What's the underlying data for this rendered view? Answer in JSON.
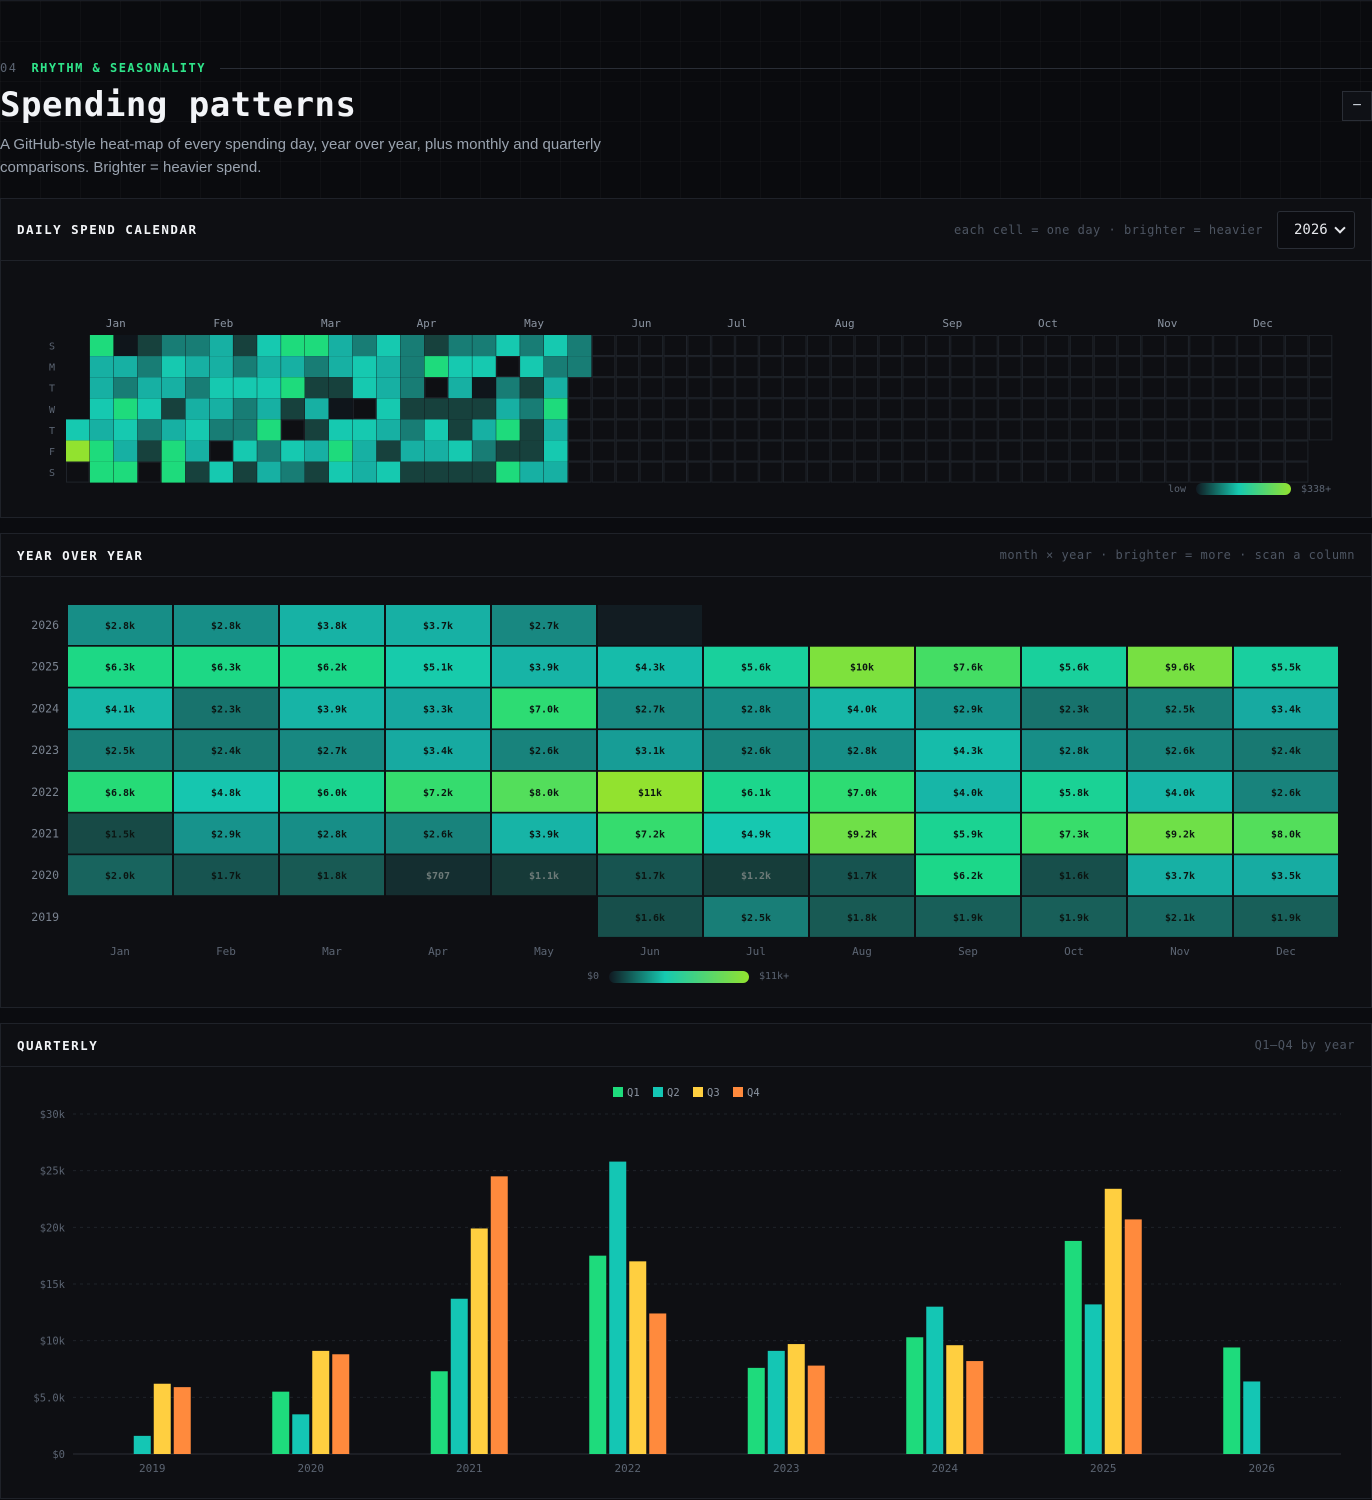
{
  "section": {
    "number": "04",
    "eyebrow": "RHYTHM & SEASONALITY",
    "title": "Spending patterns",
    "description": "A GitHub-style heat-map of every spending day, year over year, plus monthly and quarterly comparisons. Brighter = heavier spend.",
    "collapse_label": "−"
  },
  "daily": {
    "title": "DAILY SPEND CALENDAR",
    "hint": "each cell = one day · brighter = heavier",
    "year": "2026",
    "legend_low": "low",
    "legend_high": "$338+",
    "months": [
      "Jan",
      "Feb",
      "Mar",
      "Apr",
      "May",
      "Jun",
      "Jul",
      "Aug",
      "Sep",
      "Oct",
      "Nov",
      "Dec"
    ],
    "month_weeks": [
      2,
      6.5,
      11,
      15,
      19.5,
      24,
      28,
      32.5,
      37,
      41,
      46,
      50
    ],
    "weekdays": [
      "S",
      "M",
      "T",
      "W",
      "T",
      "F",
      "S"
    ],
    "weeks": 53,
    "grid": [
      [
        -1,
        4,
        0,
        3,
        4,
        0,
        3,
        3,
        4,
        0,
        2,
        1,
        1,
        2,
        2,
        0,
        1,
        1,
        0,
        2,
        2
      ],
      [
        -1,
        5,
        4,
        4,
        3,
        4,
        5,
        3,
        1,
        4,
        4,
        3,
        4,
        3,
        4,
        2,
        5,
        0,
        3,
        5,
        0
      ],
      [
        -1,
        5,
        0,
        1,
        2,
        3,
        2,
        1,
        2,
        4,
        3,
        5,
        1,
        3,
        4,
        3,
        4,
        3,
        3,
        3,
        5
      ],
      [
        -1,
        5,
        2,
        1,
        1,
        5,
        2,
        1,
        1,
        3,
        3,
        3,
        4,
        1,
        2,
        2,
        1,
        5,
        1,
        3,
        3
      ],
      [
        -1,
        5,
        2,
        1,
        2,
        3,
        4,
        4,
        4,
        2,
        3,
        2,
        4,
        1,
        4,
        4,
        3,
        5,
        1,
        5,
        3
      ],
      [
        -1,
        5,
        1,
        3,
        2,
        2,
        3,
        4,
        3,
        4,
        4,
        2,
        3,
        0,
        3,
        3,
        4,
        4,
        2,
        3,
        3
      ],
      [
        -1,
        5,
        3,
        4,
        0,
        2,
        3,
        3,
        4,
        3,
        2,
        5,
        4,
        1,
        1,
        3,
        2,
        5,
        2,
        4,
        3
      ],
      [
        -1,
        4,
        1,
        1,
        1,
        3,
        2,
        1,
        3,
        3,
        2,
        0,
        4,
        4,
        0,
        2,
        2,
        5,
        1,
        2,
        3
      ],
      [
        -1,
        5,
        2,
        3,
        4,
        3,
        1,
        4,
        4,
        3,
        3,
        3,
        4,
        1,
        4,
        4,
        2,
        3,
        3,
        2,
        5
      ],
      [
        -1,
        0,
        0,
        4,
        2,
        1,
        2,
        2,
        3,
        5,
        3,
        1,
        3,
        4,
        3,
        5,
        2,
        0,
        1,
        2,
        3
      ],
      [
        -1,
        1,
        2,
        3,
        3,
        2,
        4,
        1,
        1,
        3,
        5,
        1,
        3,
        2,
        2,
        5,
        1,
        3,
        1,
        3,
        0
      ],
      [
        -1,
        3,
        4,
        4,
        2,
        5,
        4,
        3,
        4,
        1,
        2,
        3,
        4,
        3,
        3,
        1,
        3,
        1,
        2,
        2,
        0
      ],
      [
        -1,
        2,
        4,
        4,
        4,
        3,
        3,
        4,
        1,
        3,
        2,
        2,
        2,
        5,
        3,
        4,
        2,
        5,
        4,
        1,
        2
      ],
      [
        -1,
        4,
        3,
        4,
        3,
        4,
        2,
        1,
        4,
        1,
        4,
        3,
        2,
        4,
        4,
        2,
        3,
        3,
        3,
        3,
        1
      ],
      [
        -1,
        2,
        1,
        5,
        1,
        2,
        4,
        2,
        3,
        2,
        4,
        1,
        1,
        5,
        2,
        3,
        1,
        2,
        3,
        5,
        2
      ],
      [
        -1,
        0,
        4,
        1,
        3,
        4,
        4,
        2,
        3,
        3,
        3,
        1,
        1,
        0,
        3,
        1,
        2,
        2,
        5,
        5,
        3
      ],
      [
        -1,
        3,
        1,
        1,
        1,
        3,
        1,
        1,
        3,
        1,
        4,
        2,
        1,
        1,
        3,
        4,
        2,
        3,
        4,
        4,
        2
      ],
      [
        -1,
        0,
        0,
        0,
        1,
        1,
        1,
        4,
        3,
        3,
        3,
        2,
        5,
        4,
        1,
        3,
        4,
        2,
        3,
        3,
        4
      ],
      [
        -1,
        2,
        3,
        2,
        1,
        0,
        3,
        4,
        4,
        5,
        3,
        4,
        1,
        3,
        2,
        5,
        4,
        3,
        4,
        4,
        5
      ],
      [
        -1,
        4,
        3,
        5,
        1,
        1,
        1,
        2,
        1,
        3,
        1,
        4,
        4,
        1,
        3,
        3,
        3,
        3,
        4,
        2,
        4
      ],
      [
        -1,
        4,
        2,
        4,
        4,
        3,
        4,
        1,
        5,
        2,
        3,
        3,
        3,
        3,
        4,
        1,
        2,
        3,
        3,
        3,
        4
      ],
      [
        2,
        5,
        4,
        2,
        3,
        3,
        1,
        1,
        4,
        4,
        2,
        1,
        2,
        1,
        1,
        1,
        3,
        4,
        3,
        1,
        1
      ],
      [
        3,
        4,
        4,
        2,
        4,
        4,
        1,
        1,
        3,
        3,
        4,
        3,
        1,
        5,
        3,
        1,
        3,
        1,
        3,
        1,
        2
      ],
      [
        0,
        2,
        0,
        1,
        0,
        2,
        2,
        2,
        2,
        3,
        3,
        1,
        2,
        4,
        1,
        4,
        3,
        4,
        2,
        2,
        3
      ],
      [
        1,
        4,
        1,
        1,
        3,
        2,
        1,
        4,
        3,
        1,
        4,
        3,
        3,
        5,
        3,
        2,
        1,
        2,
        3,
        3,
        2
      ],
      [
        3,
        2,
        3,
        3,
        2,
        5,
        3,
        5,
        4,
        4,
        1,
        1,
        4,
        4,
        1,
        2,
        1,
        3,
        1,
        1,
        2
      ],
      [
        -1,
        1,
        2,
        2,
        2,
        1,
        1,
        1,
        1,
        4,
        2,
        3,
        2,
        5,
        2,
        4,
        2,
        3,
        2,
        3,
        1
      ]
    ]
  },
  "yoy": {
    "title": "YEAR OVER YEAR",
    "hint": "month × year · brighter = more · scan a column",
    "months": [
      "Jan",
      "Feb",
      "Mar",
      "Apr",
      "May",
      "Jun",
      "Jul",
      "Aug",
      "Sep",
      "Oct",
      "Nov",
      "Dec"
    ],
    "legend_low": "$0",
    "legend_high": "$11k+",
    "rows": [
      {
        "year": "2026",
        "cells": [
          "$2.8k",
          "$2.8k",
          "$3.8k",
          "$3.7k",
          "$2.7k",
          "",
          "",
          "",
          "",
          "",
          "",
          ""
        ],
        "values": [
          2800,
          2800,
          3800,
          3700,
          2700,
          0,
          null,
          null,
          null,
          null,
          null,
          null
        ]
      },
      {
        "year": "2025",
        "cells": [
          "$6.3k",
          "$6.3k",
          "$6.2k",
          "$5.1k",
          "$3.9k",
          "$4.3k",
          "$5.6k",
          "$10k",
          "$7.6k",
          "$5.6k",
          "$9.6k",
          "$5.5k"
        ],
        "values": [
          6300,
          6300,
          6200,
          5100,
          3900,
          4300,
          5600,
          10000,
          7600,
          5600,
          9600,
          5500
        ]
      },
      {
        "year": "2024",
        "cells": [
          "$4.1k",
          "$2.3k",
          "$3.9k",
          "$3.3k",
          "$7.0k",
          "$2.7k",
          "$2.8k",
          "$4.0k",
          "$2.9k",
          "$2.3k",
          "$2.5k",
          "$3.4k"
        ],
        "values": [
          4100,
          2300,
          3900,
          3300,
          7000,
          2700,
          2800,
          4000,
          2900,
          2300,
          2500,
          3400
        ]
      },
      {
        "year": "2023",
        "cells": [
          "$2.5k",
          "$2.4k",
          "$2.7k",
          "$3.4k",
          "$2.6k",
          "$3.1k",
          "$2.6k",
          "$2.8k",
          "$4.3k",
          "$2.8k",
          "$2.6k",
          "$2.4k"
        ],
        "values": [
          2500,
          2400,
          2700,
          3400,
          2600,
          3100,
          2600,
          2800,
          4300,
          2800,
          2600,
          2400
        ]
      },
      {
        "year": "2022",
        "cells": [
          "$6.8k",
          "$4.8k",
          "$6.0k",
          "$7.2k",
          "$8.0k",
          "$11k",
          "$6.1k",
          "$7.0k",
          "$4.0k",
          "$5.8k",
          "$4.0k",
          "$2.6k"
        ],
        "values": [
          6800,
          4800,
          6000,
          7200,
          8000,
          11000,
          6100,
          7000,
          4000,
          5800,
          4000,
          2600
        ]
      },
      {
        "year": "2021",
        "cells": [
          "$1.5k",
          "$2.9k",
          "$2.8k",
          "$2.6k",
          "$3.9k",
          "$7.2k",
          "$4.9k",
          "$9.2k",
          "$5.9k",
          "$7.3k",
          "$9.2k",
          "$8.0k"
        ],
        "values": [
          1500,
          2900,
          2800,
          2600,
          3900,
          7200,
          4900,
          9200,
          5900,
          7300,
          9200,
          8000
        ]
      },
      {
        "year": "2020",
        "cells": [
          "$2.0k",
          "$1.7k",
          "$1.8k",
          "$707",
          "$1.1k",
          "$1.7k",
          "$1.2k",
          "$1.7k",
          "$6.2k",
          "$1.6k",
          "$3.7k",
          "$3.5k"
        ],
        "values": [
          2000,
          1700,
          1800,
          707,
          1100,
          1700,
          1200,
          1700,
          6200,
          1600,
          3700,
          3500
        ]
      },
      {
        "year": "2019",
        "cells": [
          "",
          "",
          "",
          "",
          "",
          "$1.6k",
          "$2.5k",
          "$1.8k",
          "$1.9k",
          "$1.9k",
          "$2.1k",
          "$1.9k"
        ],
        "values": [
          null,
          null,
          null,
          null,
          null,
          1600,
          2500,
          1800,
          1900,
          1900,
          2100,
          1900
        ]
      }
    ]
  },
  "quarterly": {
    "title": "QUARTERLY",
    "hint": "Q1–Q4 by year",
    "colors": {
      "Q1": "#1edb7c",
      "Q2": "#14c6b4",
      "Q3": "#ffcf40",
      "Q4": "#ff8a3d"
    }
  },
  "chart_data": {
    "type": "bar",
    "categories": [
      "2019",
      "2020",
      "2021",
      "2022",
      "2023",
      "2024",
      "2025",
      "2026"
    ],
    "series": [
      {
        "name": "Q1",
        "values": [
          0,
          5500,
          7300,
          17500,
          7600,
          10300,
          18800,
          9400
        ]
      },
      {
        "name": "Q2",
        "values": [
          1600,
          3500,
          13700,
          25800,
          9100,
          13000,
          13200,
          6400
        ]
      },
      {
        "name": "Q3",
        "values": [
          6200,
          9100,
          19900,
          17000,
          9700,
          9600,
          23400,
          0
        ]
      },
      {
        "name": "Q4",
        "values": [
          5900,
          8800,
          24500,
          12400,
          7800,
          8200,
          20700,
          0
        ]
      }
    ],
    "ylim": [
      0,
      30000
    ],
    "yticks": [
      "$0",
      "$5.0k",
      "$10k",
      "$15k",
      "$20k",
      "$25k",
      "$30k"
    ],
    "ytick_values": [
      0,
      5000,
      10000,
      15000,
      20000,
      25000,
      30000
    ],
    "legend": "top-center",
    "grid": true
  },
  "palette": [
    "#0f151b",
    "#17413d",
    "#187d75",
    "#17b0a3",
    "#16c9b0",
    "#1edb7c",
    "#5cdf55",
    "#92e22f"
  ]
}
